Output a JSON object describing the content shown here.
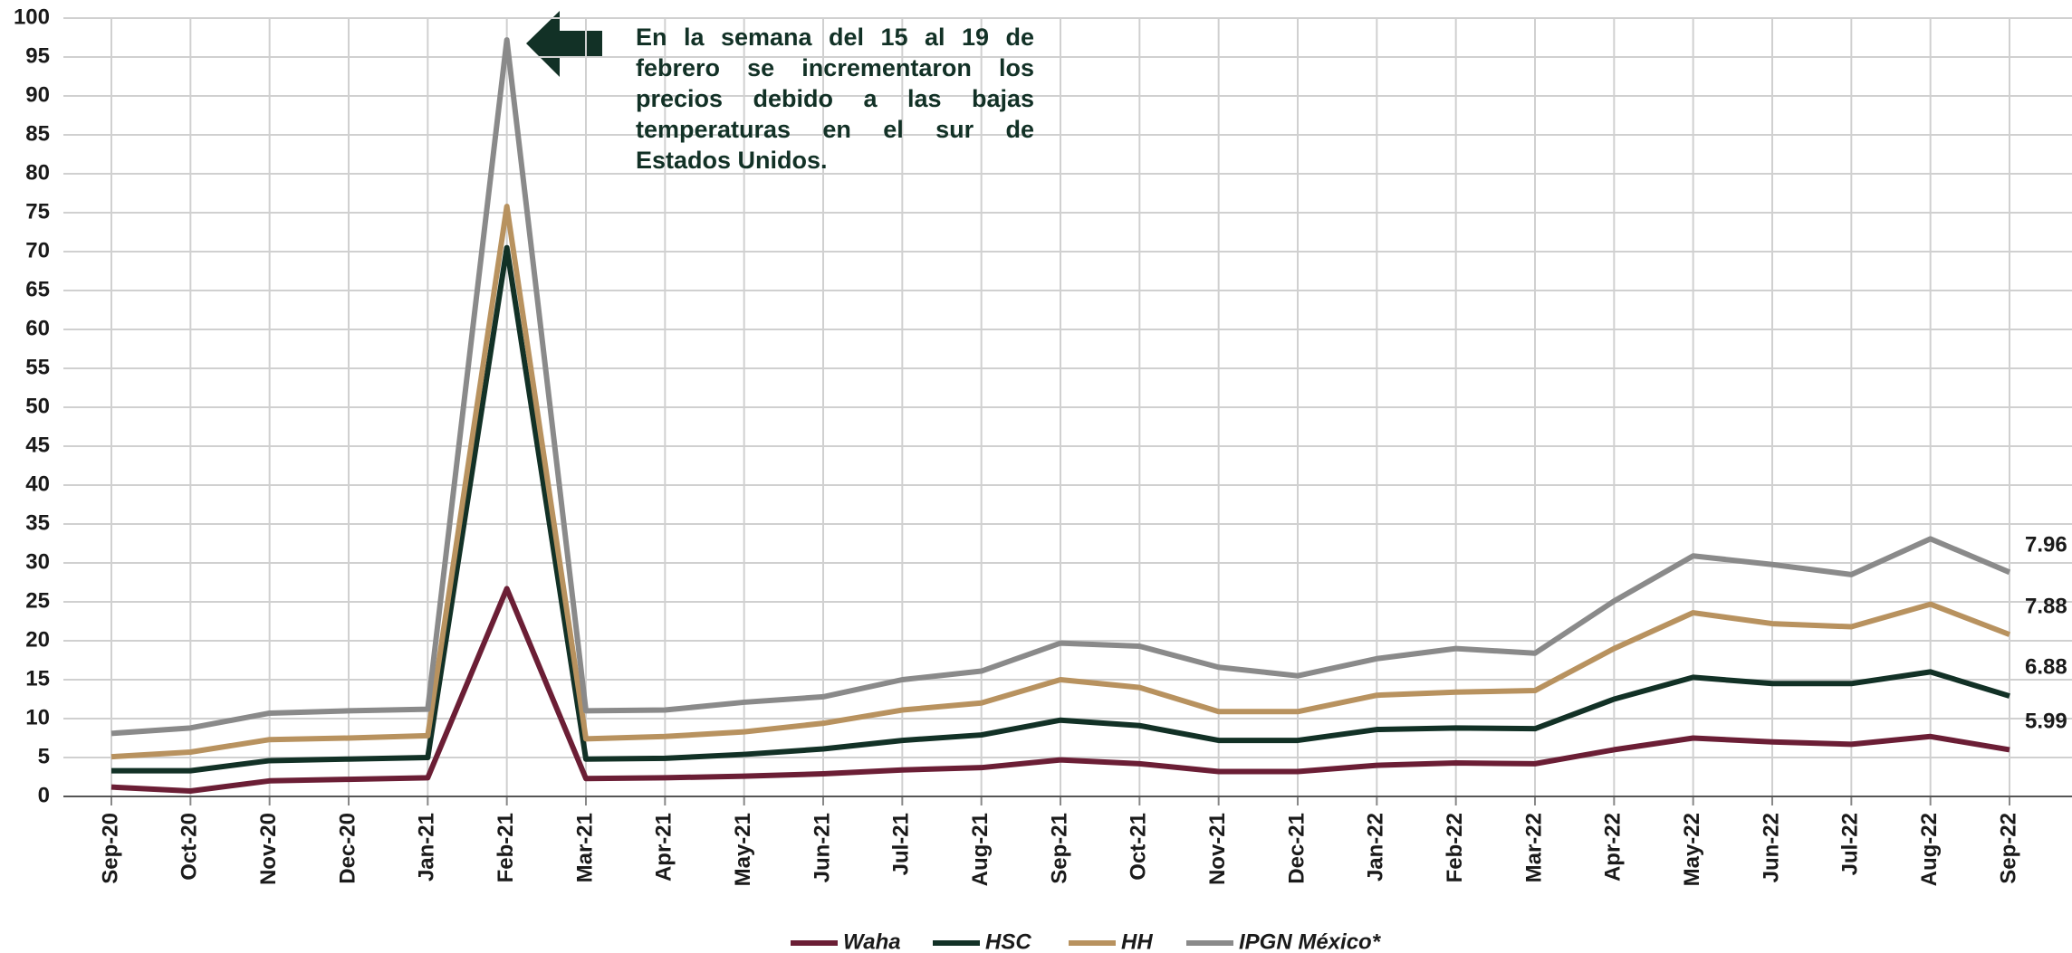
{
  "chart_data": {
    "type": "line",
    "annotation": "En la semana del 15 al 19 de febrero se incrementaron los precios debido a las bajas temperaturas en el sur de Estados Unidos.",
    "categories": [
      "Sep-20",
      "Oct-20",
      "Nov-20",
      "Dec-20",
      "Jan-21",
      "Feb-21",
      "Mar-21",
      "Apr-21",
      "May-21",
      "Jun-21",
      "Jul-21",
      "Aug-21",
      "Sep-21",
      "Oct-21",
      "Nov-21",
      "Dec-21",
      "Jan-22",
      "Feb-22",
      "Mar-22",
      "Apr-22",
      "May-22",
      "Jun-22",
      "Jul-22",
      "Aug-22",
      "Sep-22"
    ],
    "series": [
      {
        "name": "Waha",
        "color": "#6b1e35",
        "values": [
          1.2,
          0.7,
          2.0,
          2.2,
          2.4,
          26.7,
          2.3,
          2.4,
          2.6,
          2.9,
          3.4,
          3.7,
          4.7,
          4.2,
          3.2,
          3.2,
          4.0,
          4.3,
          4.2,
          6.0,
          7.5,
          7.0,
          6.7,
          7.7,
          6.0
        ]
      },
      {
        "name": "HSC",
        "color": "#123126",
        "values": [
          3.3,
          3.3,
          4.6,
          4.8,
          5.0,
          70.5,
          4.8,
          4.9,
          5.4,
          6.1,
          7.2,
          7.9,
          9.8,
          9.1,
          7.2,
          7.2,
          8.6,
          8.8,
          8.7,
          12.5,
          15.3,
          14.5,
          14.5,
          16.0,
          12.9
        ]
      },
      {
        "name": "HH",
        "color": "#b8925f",
        "values": [
          5.1,
          5.7,
          7.3,
          7.5,
          7.8,
          75.8,
          7.4,
          7.7,
          8.3,
          9.4,
          11.1,
          12.0,
          15.0,
          14.0,
          10.9,
          10.9,
          13.0,
          13.4,
          13.6,
          19.0,
          23.6,
          22.2,
          21.8,
          24.7,
          20.8
        ]
      },
      {
        "name": "IPGN México*",
        "color": "#8a8a8a",
        "values": [
          8.1,
          8.8,
          10.7,
          11.0,
          11.2,
          97.2,
          11.0,
          11.1,
          12.1,
          12.8,
          15.0,
          16.1,
          19.7,
          19.3,
          16.6,
          15.5,
          17.7,
          19.0,
          18.4,
          25.1,
          30.9,
          29.8,
          28.5,
          33.1,
          28.8
        ]
      }
    ],
    "end_labels": [
      "5.99",
      "6.88",
      "7.88",
      "7.96"
    ],
    "ylim": [
      0,
      100
    ],
    "yticks": [
      0,
      5,
      10,
      15,
      20,
      25,
      30,
      35,
      40,
      45,
      50,
      55,
      60,
      65,
      70,
      75,
      80,
      85,
      90,
      95,
      100
    ],
    "grid": true
  }
}
